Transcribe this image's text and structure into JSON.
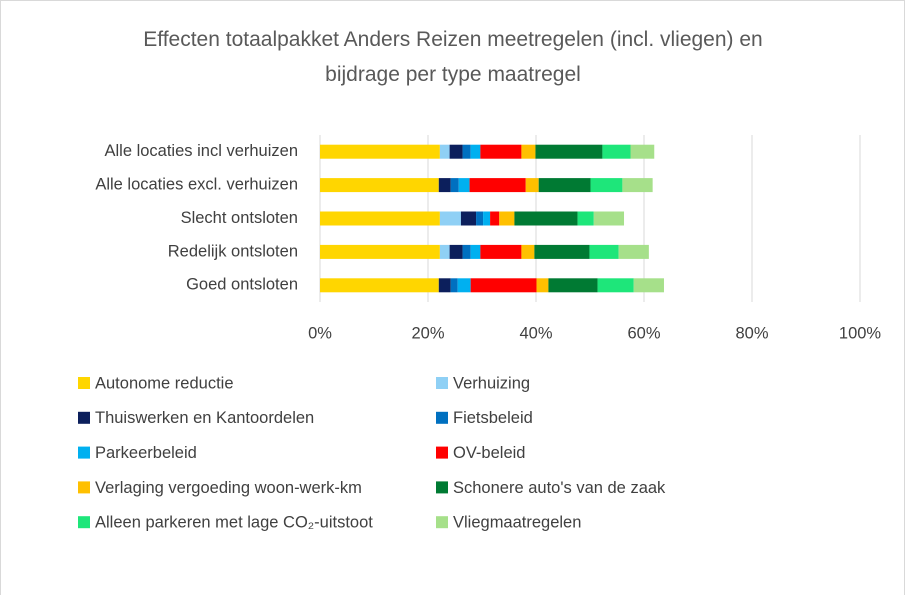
{
  "chart_data": {
    "type": "stacked-bar-horizontal",
    "title": "Effecten totaalpakket Anders Reizen meetregelen (incl. vliegen) en bijdrage per type maatregel",
    "categories": [
      "Alle locaties incl verhuizen",
      "Alle locaties excl. verhuizen",
      "Slecht ontsloten",
      "Redelijk ontsloten",
      "Goed ontsloten"
    ],
    "series": [
      {
        "name": "Autonome reductie",
        "color": "#ffd600",
        "values": [
          22.2,
          22,
          22.2,
          22.2,
          22
        ]
      },
      {
        "name": "Verhuizing",
        "color": "#8fd0f5",
        "values": [
          1.8,
          0,
          3.9,
          1.8,
          0
        ]
      },
      {
        "name": "Thuiswerken en Kantoordelen",
        "color": "#0c1f5c",
        "values": [
          2.4,
          2.2,
          2.8,
          2.4,
          2.2
        ]
      },
      {
        "name": "Fietsbeleid",
        "color": "#0070c0",
        "values": [
          1.5,
          1.5,
          1.3,
          1.5,
          1.3
        ]
      },
      {
        "name": "Parkeerbeleid",
        "color": "#00b0f0",
        "values": [
          1.8,
          2,
          1.3,
          1.8,
          2.4
        ]
      },
      {
        "name": "OV-beleid",
        "color": "#ff0000",
        "values": [
          7.6,
          10.4,
          1.7,
          7.6,
          12.2
        ]
      },
      {
        "name": "Verlaging vergoeding woon-werk-km",
        "color": "#ffc000",
        "values": [
          2.6,
          2.4,
          2.8,
          2.4,
          2.2
        ]
      },
      {
        "name": "Schonere auto's van de zaak",
        "color": "#007a33",
        "values": [
          12.4,
          9.6,
          11.7,
          10.2,
          9.1
        ]
      },
      {
        "name": "Alleen parkeren met lage CO₂-uitstoot",
        "color": "#1ee67a",
        "values": [
          5.2,
          5.9,
          3,
          5.4,
          6.7
        ]
      },
      {
        "name": "Vliegmaatregelen",
        "color": "#a6e08a",
        "values": [
          4.4,
          5.6,
          5.6,
          5.6,
          5.6
        ]
      }
    ],
    "xlim": [
      0,
      100
    ],
    "xticks": [
      {
        "value": 0,
        "label": "0%"
      },
      {
        "value": 20,
        "label": "20%"
      },
      {
        "value": 40,
        "label": "40%"
      },
      {
        "value": 60,
        "label": "60%"
      },
      {
        "value": 80,
        "label": "80%"
      },
      {
        "value": 100,
        "label": "100%"
      }
    ],
    "grid": true
  }
}
